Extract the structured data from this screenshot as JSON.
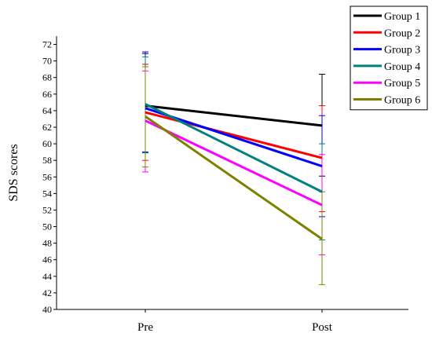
{
  "chart_data": {
    "type": "line",
    "ylabel": "SDS scores",
    "xlabel": "",
    "categories": [
      "Pre",
      "Post"
    ],
    "ylim": [
      40,
      73
    ],
    "yticks": [
      40,
      42,
      44,
      46,
      48,
      50,
      52,
      54,
      56,
      58,
      60,
      62,
      64,
      66,
      68,
      70,
      72
    ],
    "legend_position": "top-right",
    "series": [
      {
        "name": "Group 1",
        "color": "#000000",
        "values": [
          64.6,
          62.2
        ],
        "lower": [
          59.0,
          56.1
        ],
        "upper": [
          70.9,
          68.4
        ]
      },
      {
        "name": "Group 2",
        "color": "#ff0000",
        "values": [
          63.8,
          58.3
        ],
        "lower": [
          58.0,
          51.8
        ],
        "upper": [
          69.6,
          64.6
        ]
      },
      {
        "name": "Group 3",
        "color": "#0000ff",
        "values": [
          64.3,
          57.3
        ],
        "lower": [
          59.0,
          51.2
        ],
        "upper": [
          71.1,
          63.4
        ]
      },
      {
        "name": "Group 4",
        "color": "#008080",
        "values": [
          64.8,
          54.2
        ],
        "lower": [
          58.9,
          48.4
        ],
        "upper": [
          70.5,
          60.0
        ]
      },
      {
        "name": "Group 5",
        "color": "#ff00ff",
        "values": [
          62.8,
          52.6
        ],
        "lower": [
          56.6,
          46.6
        ],
        "upper": [
          68.8,
          58.7
        ]
      },
      {
        "name": "Group 6",
        "color": "#808000",
        "values": [
          63.3,
          48.5
        ],
        "lower": [
          57.2,
          43.0
        ],
        "upper": [
          69.3,
          54.2
        ]
      }
    ]
  }
}
